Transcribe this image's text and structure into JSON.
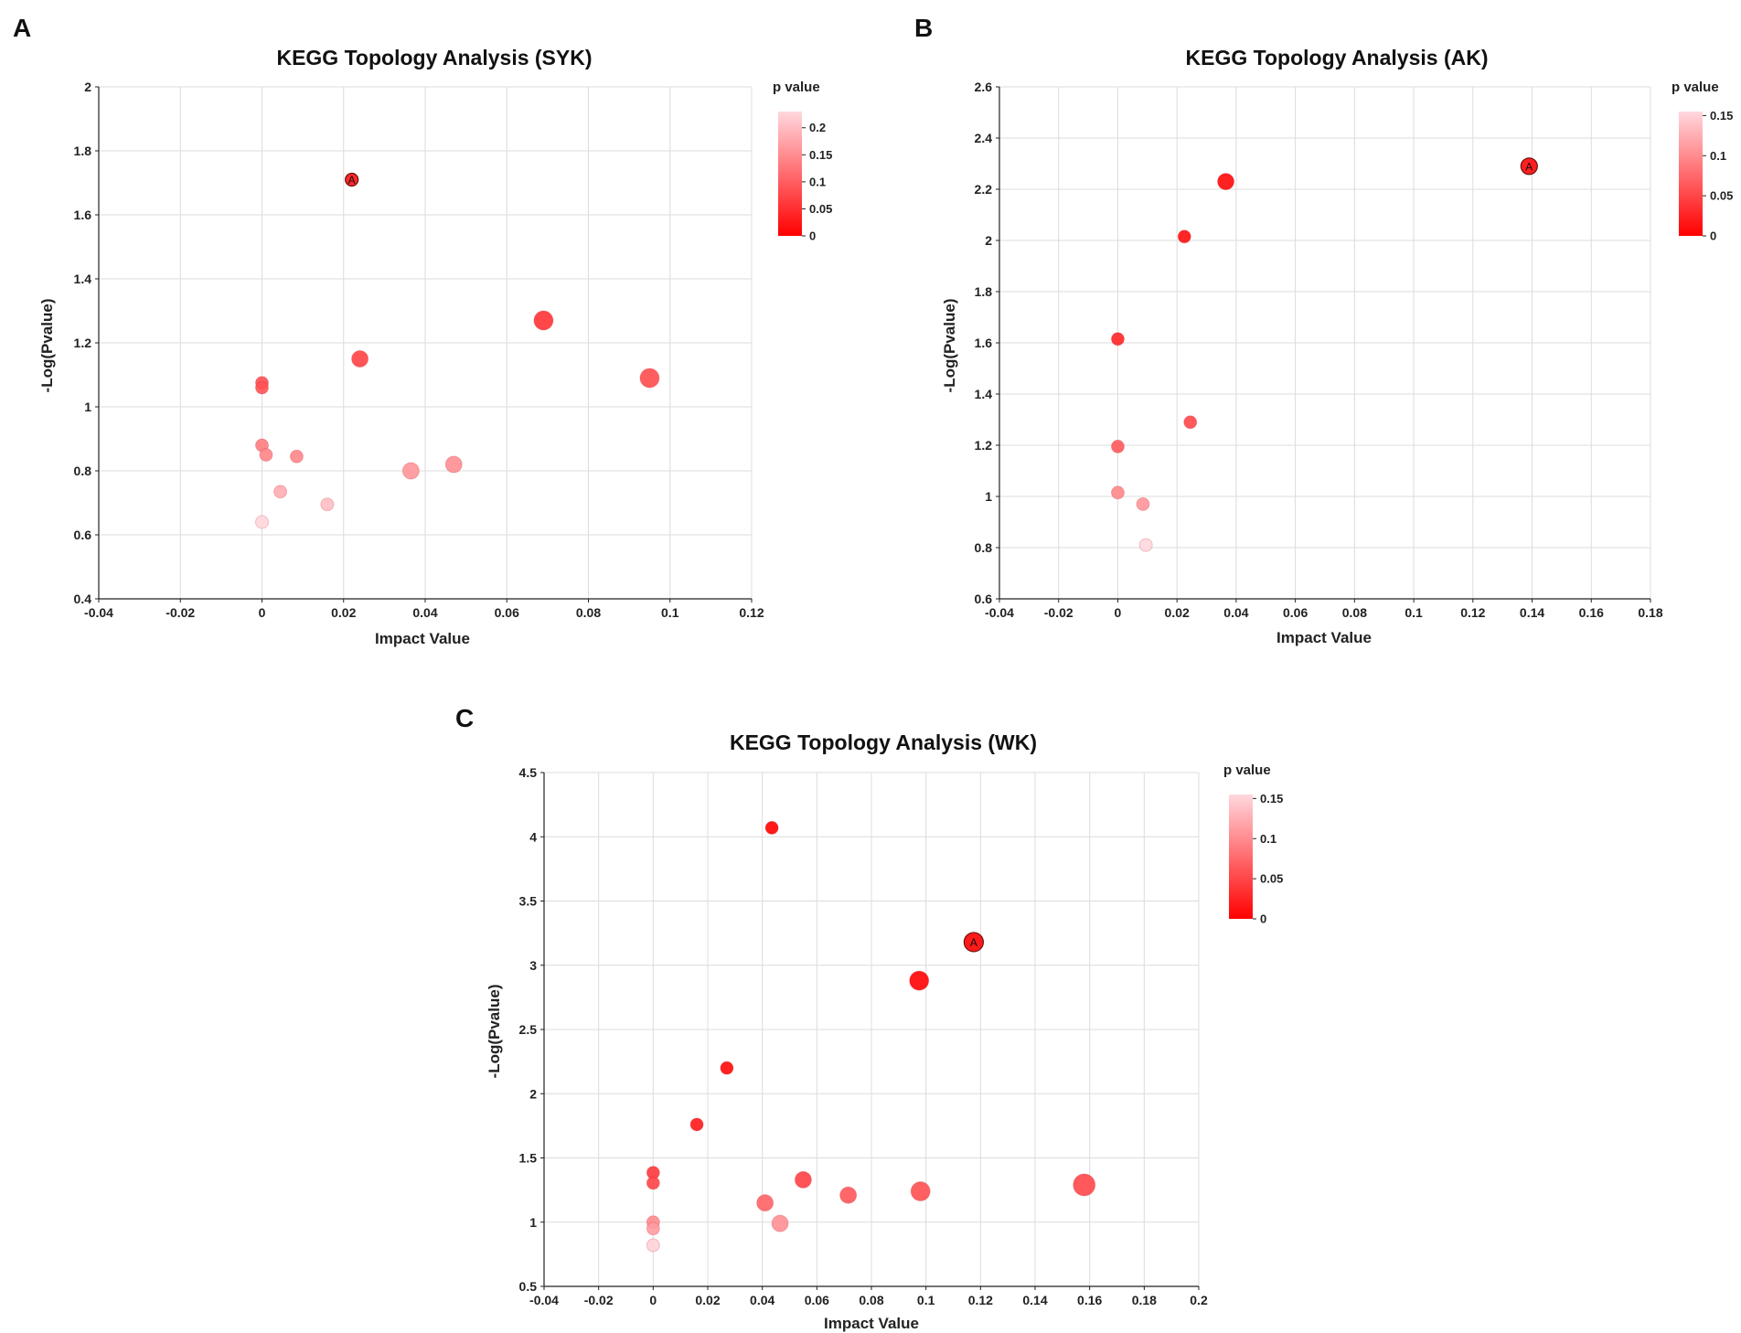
{
  "chart_data": [
    {
      "panel": "A",
      "type": "scatter",
      "title": "KEGG Topology Analysis (SYK)",
      "xlabel": "Impact Value",
      "ylabel": "-Log(Pvalue)",
      "xlim": [
        -0.04,
        0.12
      ],
      "ylim": [
        0.4,
        2.0
      ],
      "xticks": [
        -0.04,
        -0.02,
        0,
        0.02,
        0.04,
        0.06,
        0.08,
        0.1,
        0.12
      ],
      "xtick_labels": [
        "-0.04",
        "-0.02",
        "0",
        "0.02",
        "0.04",
        "0.06",
        "0.08",
        "0.1",
        "0.12"
      ],
      "yticks": [
        0.4,
        0.6,
        0.8,
        1.0,
        1.2,
        1.4,
        1.6,
        1.8,
        2.0
      ],
      "ytick_labels": [
        "0.4",
        "0.6",
        "0.8",
        "1",
        "1.2",
        "1.4",
        "1.6",
        "1.8",
        "2"
      ],
      "legend": {
        "title": "p value",
        "max": 0.23,
        "ticks": [
          0.2,
          0.15,
          0.1,
          0.05,
          0
        ],
        "tick_labels": [
          "0.2",
          "0.15",
          "0.1",
          "0.05",
          "0"
        ],
        "color_low": "#ff0000",
        "color_high": "#ffd8de"
      },
      "points": [
        {
          "x": 0.022,
          "y": 1.71,
          "size": 1,
          "label": "A"
        },
        {
          "x": 0.069,
          "y": 1.27,
          "size": 3
        },
        {
          "x": 0.024,
          "y": 1.15,
          "size": 2
        },
        {
          "x": 0.095,
          "y": 1.09,
          "size": 3
        },
        {
          "x": 0.0,
          "y": 1.075,
          "size": 1
        },
        {
          "x": 0.0,
          "y": 1.06,
          "size": 1
        },
        {
          "x": 0.0,
          "y": 0.88,
          "size": 1
        },
        {
          "x": 0.001,
          "y": 0.85,
          "size": 1
        },
        {
          "x": 0.0085,
          "y": 0.845,
          "size": 1
        },
        {
          "x": 0.047,
          "y": 0.82,
          "size": 2
        },
        {
          "x": 0.0365,
          "y": 0.8,
          "size": 2
        },
        {
          "x": 0.0045,
          "y": 0.735,
          "size": 1
        },
        {
          "x": 0.016,
          "y": 0.695,
          "size": 1
        },
        {
          "x": 0.0,
          "y": 0.64,
          "size": 1
        }
      ]
    },
    {
      "panel": "B",
      "type": "scatter",
      "title": "KEGG Topology Analysis (AK)",
      "xlabel": "Impact Value",
      "ylabel": "-Log(Pvalue)",
      "xlim": [
        -0.04,
        0.18
      ],
      "ylim": [
        0.6,
        2.6
      ],
      "xticks": [
        -0.04,
        -0.02,
        0,
        0.02,
        0.04,
        0.06,
        0.08,
        0.1,
        0.12,
        0.14,
        0.16,
        0.18
      ],
      "xtick_labels": [
        "-0.04",
        "-0.02",
        "0",
        "0.02",
        "0.04",
        "0.06",
        "0.08",
        "0.1",
        "0.12",
        "0.14",
        "0.16",
        "0.18"
      ],
      "yticks": [
        0.6,
        0.8,
        1.0,
        1.2,
        1.4,
        1.6,
        1.8,
        2.0,
        2.2,
        2.4,
        2.6
      ],
      "ytick_labels": [
        "0.6",
        "0.8",
        "1",
        "1.2",
        "1.4",
        "1.6",
        "1.8",
        "2",
        "2.2",
        "2.4",
        "2.6"
      ],
      "legend": {
        "title": "p value",
        "max": 0.155,
        "ticks": [
          0.15,
          0.1,
          0.05,
          0
        ],
        "tick_labels": [
          "0.15",
          "0.1",
          "0.05",
          "0"
        ],
        "color_low": "#ff0000",
        "color_high": "#ffd8de"
      },
      "points": [
        {
          "x": 0.139,
          "y": 2.29,
          "size": 2,
          "label": "A"
        },
        {
          "x": 0.0365,
          "y": 2.23,
          "size": 2
        },
        {
          "x": 0.0225,
          "y": 2.015,
          "size": 1
        },
        {
          "x": 0.0,
          "y": 1.615,
          "size": 1
        },
        {
          "x": 0.0245,
          "y": 1.29,
          "size": 1
        },
        {
          "x": 0.0,
          "y": 1.195,
          "size": 1
        },
        {
          "x": 0.0,
          "y": 1.015,
          "size": 1
        },
        {
          "x": 0.0085,
          "y": 0.97,
          "size": 1
        },
        {
          "x": 0.0095,
          "y": 0.81,
          "size": 1
        }
      ]
    },
    {
      "panel": "C",
      "type": "scatter",
      "title": "KEGG Topology Analysis (WK)",
      "xlabel": "Impact Value",
      "ylabel": "-Log(Pvalue)",
      "xlim": [
        -0.04,
        0.2
      ],
      "ylim": [
        0.5,
        4.5
      ],
      "xticks": [
        -0.04,
        -0.02,
        0,
        0.02,
        0.04,
        0.06,
        0.08,
        0.1,
        0.12,
        0.14,
        0.16,
        0.18,
        0.2
      ],
      "xtick_labels": [
        "-0.04",
        "-0.02",
        "0",
        "0.02",
        "0.04",
        "0.06",
        "0.08",
        "0.1",
        "0.12",
        "0.14",
        "0.16",
        "0.18",
        "0.2"
      ],
      "yticks": [
        0.5,
        1.0,
        1.5,
        2.0,
        2.5,
        3.0,
        3.5,
        4.0,
        4.5
      ],
      "ytick_labels": [
        "0.5",
        "1",
        "1.5",
        "2",
        "2.5",
        "3",
        "3.5",
        "4",
        "4.5"
      ],
      "legend": {
        "title": "p value",
        "max": 0.155,
        "ticks": [
          0.15,
          0.1,
          0.05,
          0
        ],
        "tick_labels": [
          "0.15",
          "0.1",
          "0.05",
          "0"
        ],
        "color_low": "#ff0000",
        "color_high": "#ffd8de"
      },
      "points": [
        {
          "x": 0.0435,
          "y": 4.07,
          "size": 1
        },
        {
          "x": 0.1175,
          "y": 3.18,
          "size": 3,
          "label": "A"
        },
        {
          "x": 0.0975,
          "y": 2.88,
          "size": 3
        },
        {
          "x": 0.027,
          "y": 2.2,
          "size": 1
        },
        {
          "x": 0.016,
          "y": 1.76,
          "size": 1
        },
        {
          "x": 0.0,
          "y": 1.385,
          "size": 1
        },
        {
          "x": 0.0,
          "y": 1.305,
          "size": 1
        },
        {
          "x": 0.055,
          "y": 1.33,
          "size": 2
        },
        {
          "x": 0.158,
          "y": 1.29,
          "size": 4
        },
        {
          "x": 0.098,
          "y": 1.24,
          "size": 3
        },
        {
          "x": 0.0715,
          "y": 1.21,
          "size": 2
        },
        {
          "x": 0.041,
          "y": 1.15,
          "size": 2
        },
        {
          "x": 0.0,
          "y": 1.0,
          "size": 1
        },
        {
          "x": 0.0465,
          "y": 0.99,
          "size": 2
        },
        {
          "x": 0.0,
          "y": 0.95,
          "size": 1
        },
        {
          "x": 0.0,
          "y": 0.82,
          "size": 1
        }
      ]
    }
  ]
}
